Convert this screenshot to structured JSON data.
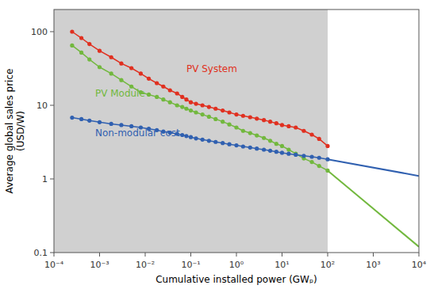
{
  "chart_data": {
    "type": "line",
    "x_label": "Cumulative installed power (GWₚ)",
    "y_label": "Average global sales price\n(USD/W)",
    "log": true,
    "grid": false,
    "xlim": [
      0.0001,
      10000
    ],
    "ylim": [
      0.1,
      200
    ],
    "xticks": [
      {
        "value": 0.0001,
        "label": "10⁻⁴"
      },
      {
        "value": 0.001,
        "label": "10⁻³"
      },
      {
        "value": 0.01,
        "label": "10⁻²"
      },
      {
        "value": 0.1,
        "label": "10⁻¹"
      },
      {
        "value": 1,
        "label": "10⁰"
      },
      {
        "value": 10,
        "label": "10¹"
      },
      {
        "value": 100,
        "label": "10²"
      },
      {
        "value": 1000,
        "label": "10³"
      },
      {
        "value": 10000,
        "label": "10⁴"
      }
    ],
    "yticks": [
      0.1,
      1,
      10,
      100
    ],
    "spans": [
      {
        "x": [
          0.0001,
          100
        ],
        "color": "#d0d0d0"
      }
    ],
    "series": [
      {
        "color": "#e03020",
        "marker": "circle",
        "line_style": "solid",
        "x": [
          0.00025,
          0.0004,
          0.0006,
          0.001,
          0.0018,
          0.003,
          0.005,
          0.008,
          0.012,
          0.018,
          0.025,
          0.035,
          0.05,
          0.065,
          0.08,
          0.1,
          0.13,
          0.18,
          0.25,
          0.35,
          0.5,
          0.7,
          1.0,
          1.4,
          2.0,
          2.8,
          4.0,
          5.5,
          7.5,
          10,
          14,
          20,
          30,
          45,
          65,
          100
        ],
        "values": [
          100,
          82,
          68,
          55,
          45,
          37,
          32,
          27,
          23,
          20,
          18,
          16,
          14.5,
          13,
          12,
          11,
          10.5,
          10,
          9.5,
          9,
          8.5,
          8,
          7.5,
          7.2,
          6.9,
          6.6,
          6.3,
          6.0,
          5.7,
          5.4,
          5.2,
          5.0,
          4.5,
          4.0,
          3.5,
          2.8
        ]
      },
      {
        "color": "#72b83e",
        "marker": "circle",
        "line_style": "solid",
        "x": [
          0.00025,
          0.0004,
          0.0006,
          0.001,
          0.0018,
          0.003,
          0.005,
          0.008,
          0.012,
          0.018,
          0.025,
          0.035,
          0.05,
          0.065,
          0.08,
          0.1,
          0.13,
          0.18,
          0.25,
          0.35,
          0.5,
          0.7,
          1.0,
          1.4,
          2.0,
          2.8,
          4.0,
          5.5,
          7.5,
          10,
          14,
          20,
          30,
          45,
          65,
          100
        ],
        "values": [
          65,
          52,
          42,
          33,
          27,
          22,
          18,
          15,
          14,
          13,
          12,
          11,
          10,
          9.5,
          9,
          8.5,
          8,
          7.5,
          7,
          6.5,
          6,
          5.5,
          5.0,
          4.5,
          4.2,
          3.9,
          3.6,
          3.3,
          3.0,
          2.8,
          2.5,
          2.2,
          1.9,
          1.7,
          1.5,
          1.3
        ]
      },
      {
        "color": "#3060b0",
        "marker": "circle",
        "line_style": "solid",
        "x": [
          0.00025,
          0.0004,
          0.0006,
          0.001,
          0.0018,
          0.003,
          0.005,
          0.008,
          0.012,
          0.018,
          0.025,
          0.035,
          0.05,
          0.065,
          0.08,
          0.1,
          0.13,
          0.18,
          0.25,
          0.35,
          0.5,
          0.7,
          1.0,
          1.4,
          2.0,
          2.8,
          4.0,
          5.5,
          7.5,
          10,
          14,
          20,
          30,
          45,
          65,
          100
        ],
        "values": [
          6.8,
          6.5,
          6.2,
          5.9,
          5.6,
          5.4,
          5.2,
          5.0,
          4.8,
          4.6,
          4.4,
          4.25,
          4.1,
          3.95,
          3.82,
          3.7,
          3.55,
          3.42,
          3.3,
          3.18,
          3.07,
          2.96,
          2.86,
          2.76,
          2.67,
          2.58,
          2.5,
          2.42,
          2.34,
          2.27,
          2.2,
          2.13,
          2.06,
          2.0,
          1.94,
          1.85
        ]
      },
      {
        "color": "#72b83e",
        "marker": "none",
        "line_style": "solid",
        "x": [
          100,
          10000
        ],
        "values": [
          1.3,
          0.12
        ]
      },
      {
        "color": "#3060b0",
        "marker": "none",
        "line_style": "solid",
        "x": [
          100,
          10000
        ],
        "values": [
          1.85,
          1.1
        ]
      }
    ],
    "annotations": [
      {
        "text": "PV System",
        "x": 0.08,
        "y": 28,
        "color": "#e03020"
      },
      {
        "text": "PV Module",
        "x": 0.0008,
        "y": 13,
        "color": "#72b83e"
      },
      {
        "text": "Non-modular cost",
        "x": 0.0008,
        "y": 3.8,
        "color": "#3060b0"
      }
    ]
  }
}
